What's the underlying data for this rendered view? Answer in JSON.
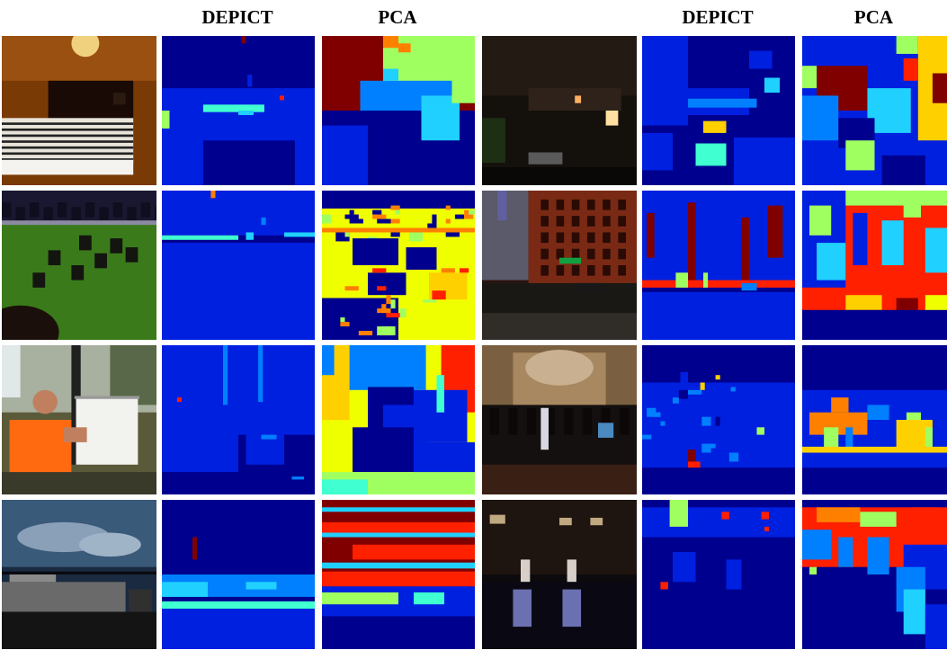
{
  "headers": {
    "depict_left": "DEPICT",
    "pca_left": "PCA",
    "depict_right": "DEPICT",
    "pca_right": "PCA"
  },
  "palette": {
    "navy": "#00008f",
    "blue": "#0020e0",
    "azure": "#0080ff",
    "cyan": "#20d0ff",
    "aqua": "#40ffd0",
    "lime": "#a0ff60",
    "yellow": "#f0ff00",
    "gold": "#ffd000",
    "orange": "#ff8000",
    "red": "#ff2000",
    "maroon": "#800000"
  },
  "cells": [
    {
      "name": "photo-bedroom",
      "kind": "photo"
    },
    {
      "name": "depict-bedroom",
      "kind": "depict"
    },
    {
      "name": "pca-bedroom",
      "kind": "pca"
    },
    {
      "name": "photo-hotel-room",
      "kind": "photo"
    },
    {
      "name": "depict-hotel-room",
      "kind": "depict"
    },
    {
      "name": "pca-hotel-room",
      "kind": "pca"
    },
    {
      "name": "photo-cemetery",
      "kind": "photo"
    },
    {
      "name": "depict-cemetery",
      "kind": "depict"
    },
    {
      "name": "pca-cemetery",
      "kind": "pca"
    },
    {
      "name": "photo-street-building",
      "kind": "photo"
    },
    {
      "name": "depict-street-building",
      "kind": "depict"
    },
    {
      "name": "pca-street-building",
      "kind": "pca"
    },
    {
      "name": "photo-painter",
      "kind": "photo"
    },
    {
      "name": "depict-painter",
      "kind": "depict"
    },
    {
      "name": "pca-painter",
      "kind": "pca"
    },
    {
      "name": "photo-church-hall",
      "kind": "photo"
    },
    {
      "name": "depict-church-hall",
      "kind": "depict"
    },
    {
      "name": "pca-church-hall",
      "kind": "pca"
    },
    {
      "name": "photo-house-sky",
      "kind": "photo"
    },
    {
      "name": "depict-house-sky",
      "kind": "depict"
    },
    {
      "name": "pca-house-sky",
      "kind": "pca"
    },
    {
      "name": "photo-ballroom",
      "kind": "photo"
    },
    {
      "name": "depict-ballroom",
      "kind": "depict"
    },
    {
      "name": "pca-ballroom",
      "kind": "pca"
    }
  ]
}
